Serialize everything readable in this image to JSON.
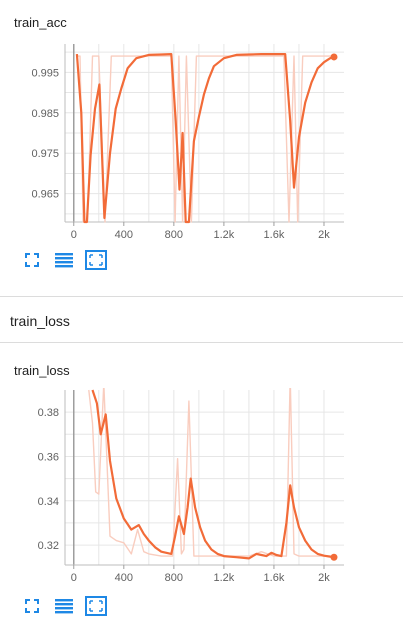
{
  "cards": [
    {
      "title": "train_acc",
      "chart_data": {
        "type": "line",
        "title": "train_acc",
        "xlabel": "",
        "ylabel": "",
        "xlim": [
          -70,
          2160
        ],
        "ylim": [
          0.958,
          1.002
        ],
        "x_ticks": [
          0,
          400,
          800,
          1200,
          1600,
          2000
        ],
        "x_tick_labels": [
          "0",
          "400",
          "800",
          "1.2k",
          "1.6k",
          "2k"
        ],
        "y_ticks": [
          0.965,
          0.975,
          0.985,
          0.995
        ],
        "y_tick_labels": [
          "0.965",
          "0.975",
          "0.985",
          "0.995"
        ],
        "grid": true,
        "series": [
          {
            "role": "raw",
            "color": "#f9cdbf",
            "x": [
              25,
              50,
              75,
              110,
              150,
              200,
              250,
              300,
              400,
              500,
              600,
              700,
              780,
              810,
              840,
              870,
              900,
              940,
              980,
              1020,
              1100,
              1200,
              1300,
              1400,
              1500,
              1600,
              1680,
              1720,
              1760,
              1790,
              1830,
              1900,
              2000,
              2060,
              2090
            ],
            "y": [
              0.999,
              0.999,
              0.958,
              0.958,
              0.999,
              0.999,
              0.958,
              0.999,
              0.999,
              0.999,
              0.999,
              0.999,
              0.999,
              0.958,
              0.999,
              0.958,
              0.999,
              0.958,
              0.999,
              0.999,
              0.999,
              0.999,
              0.999,
              0.999,
              0.999,
              0.999,
              0.999,
              0.958,
              0.999,
              0.958,
              0.999,
              0.999,
              0.999,
              0.999,
              0.999
            ]
          },
          {
            "role": "smoothed",
            "color": "#f26b38",
            "x": [
              25,
              60,
              85,
              105,
              135,
              170,
              205,
              245,
              290,
              335,
              380,
              430,
              500,
              600,
              700,
              780,
              815,
              845,
              870,
              895,
              920,
              960,
              1000,
              1040,
              1080,
              1120,
              1200,
              1300,
              1400,
              1500,
              1600,
              1690,
              1730,
              1760,
              1800,
              1850,
              1900,
              1950,
              2000,
              2050,
              2080
            ],
            "y": [
              0.9995,
              0.985,
              0.958,
              0.958,
              0.9745,
              0.986,
              0.992,
              0.959,
              0.975,
              0.986,
              0.991,
              0.996,
              0.9985,
              0.9993,
              0.9994,
              0.9995,
              0.983,
              0.966,
              0.98,
              0.958,
              0.958,
              0.978,
              0.984,
              0.9895,
              0.9935,
              0.9965,
              0.9985,
              0.9993,
              0.9994,
              0.9995,
              0.9995,
              0.9995,
              0.983,
              0.9665,
              0.979,
              0.9875,
              0.9925,
              0.996,
              0.9975,
              0.9985,
              0.9988
            ]
          }
        ]
      }
    },
    {
      "title": "train_loss",
      "chart_data": {
        "type": "line",
        "title": "train_loss",
        "xlabel": "",
        "ylabel": "",
        "xlim": [
          -70,
          2160
        ],
        "ylim": [
          0.311,
          0.39
        ],
        "x_ticks": [
          0,
          400,
          800,
          1200,
          1600,
          2000
        ],
        "x_tick_labels": [
          "0",
          "400",
          "800",
          "1.2k",
          "1.6k",
          "2k"
        ],
        "y_ticks": [
          0.32,
          0.34,
          0.36,
          0.38
        ],
        "y_tick_labels": [
          "0.32",
          "0.34",
          "0.36",
          "0.38"
        ],
        "grid": true,
        "series": [
          {
            "role": "raw",
            "color": "#f9cdbf",
            "x": [
              120,
              150,
              175,
              200,
              240,
              290,
              340,
              400,
              460,
              510,
              560,
              600,
              700,
              790,
              830,
              860,
              880,
              920,
              960,
              1000,
              1100,
              1200,
              1300,
              1400,
              1500,
              1600,
              1650,
              1700,
              1730,
              1760,
              1800,
              1900,
              2000,
              2090
            ],
            "y": [
              0.39,
              0.375,
              0.344,
              0.343,
              0.393,
              0.324,
              0.322,
              0.321,
              0.316,
              0.327,
              0.317,
              0.316,
              0.315,
              0.315,
              0.359,
              0.316,
              0.318,
              0.385,
              0.315,
              0.315,
              0.315,
              0.315,
              0.315,
              0.315,
              0.317,
              0.315,
              0.315,
              0.315,
              0.396,
              0.316,
              0.315,
              0.315,
              0.315,
              0.315
            ]
          },
          {
            "role": "smoothed",
            "color": "#f26b38",
            "x": [
              150,
              185,
              215,
              255,
              290,
              340,
              400,
              460,
              520,
              560,
              600,
              650,
              700,
              780,
              810,
              840,
              860,
              880,
              910,
              935,
              970,
              1010,
              1050,
              1100,
              1150,
              1200,
              1300,
              1400,
              1460,
              1500,
              1540,
              1580,
              1620,
              1660,
              1700,
              1730,
              1760,
              1800,
              1850,
              1900,
              1950,
              2000,
              2050,
              2080
            ],
            "y": [
              0.39,
              0.384,
              0.37,
              0.379,
              0.358,
              0.341,
              0.332,
              0.327,
              0.329,
              0.325,
              0.322,
              0.319,
              0.317,
              0.316,
              0.324,
              0.333,
              0.329,
              0.325,
              0.337,
              0.35,
              0.337,
              0.328,
              0.322,
              0.318,
              0.316,
              0.315,
              0.3145,
              0.314,
              0.316,
              0.3155,
              0.315,
              0.3165,
              0.3155,
              0.315,
              0.33,
              0.347,
              0.337,
              0.328,
              0.322,
              0.318,
              0.316,
              0.3152,
              0.3148,
              0.3145
            ]
          }
        ]
      }
    }
  ],
  "section": {
    "title": "train_loss"
  },
  "toolbar": {
    "icons": [
      "fullscreen-icon",
      "list-icon",
      "fit-domain-icon"
    ],
    "accent": "#1e88e5"
  }
}
